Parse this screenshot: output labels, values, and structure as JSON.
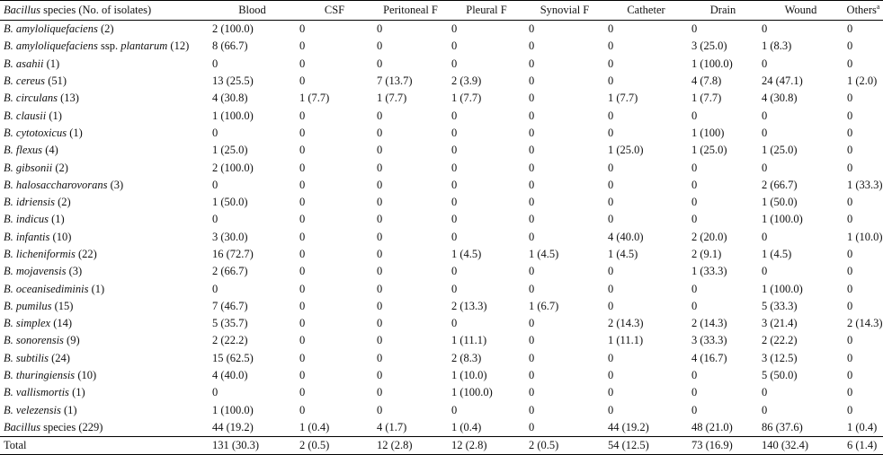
{
  "header": {
    "species_italic": "Bacillus",
    "species_rest": " species (No. of isolates)",
    "columns": [
      "Blood",
      "CSF",
      "Peritoneal F",
      "Pleural F",
      "Synovial F",
      "Catheter",
      "Drain",
      "Wound",
      "Others"
    ],
    "others_superscript": "a"
  },
  "rows": [
    {
      "genus": "B.",
      "species": "amyloliquefaciens",
      "suffix": " (2)",
      "values": [
        "2 (100.0)",
        "0",
        "0",
        "0",
        "0",
        "0",
        "0",
        "0",
        "0"
      ]
    },
    {
      "genus": "B.",
      "species": "amyloliquefaciens",
      "suffix": " ssp. ",
      "suffix_italic": "plantarum",
      "suffix2": " (12)",
      "values": [
        "8 (66.7)",
        "0",
        "0",
        "0",
        "0",
        "0",
        "3 (25.0)",
        "1 (8.3)",
        "0"
      ]
    },
    {
      "genus": "B.",
      "species": "asahii",
      "suffix": " (1)",
      "values": [
        "0",
        "0",
        "0",
        "0",
        "0",
        "0",
        "1 (100.0)",
        "0",
        "0"
      ]
    },
    {
      "genus": "B.",
      "species": "cereus",
      "suffix": " (51)",
      "values": [
        "13 (25.5)",
        "0",
        "7 (13.7)",
        "2 (3.9)",
        "0",
        "0",
        "4 (7.8)",
        "24 (47.1)",
        "1 (2.0)"
      ]
    },
    {
      "genus": "B.",
      "species": "circulans",
      "suffix": " (13)",
      "values": [
        "4 (30.8)",
        "1 (7.7)",
        "1 (7.7)",
        "1 (7.7)",
        "0",
        "1 (7.7)",
        "1 (7.7)",
        "4 (30.8)",
        "0"
      ]
    },
    {
      "genus": "B.",
      "species": "clausii",
      "suffix": " (1)",
      "values": [
        "1 (100.0)",
        "0",
        "0",
        "0",
        "0",
        "0",
        "0",
        "0",
        "0"
      ]
    },
    {
      "genus": "B.",
      "species": "cytotoxicus",
      "suffix": " (1)",
      "values": [
        "0",
        "0",
        "0",
        "0",
        "0",
        "0",
        "1 (100)",
        "0",
        "0"
      ]
    },
    {
      "genus": "B.",
      "species": "flexus",
      "suffix": " (4)",
      "values": [
        "1 (25.0)",
        "0",
        "0",
        "0",
        "0",
        "1 (25.0)",
        "1 (25.0)",
        "1 (25.0)",
        "0"
      ]
    },
    {
      "genus": "B.",
      "species": "gibsonii",
      "suffix": " (2)",
      "values": [
        "2 (100.0)",
        "0",
        "0",
        "0",
        "0",
        "0",
        "0",
        "0",
        "0"
      ]
    },
    {
      "genus": "B.",
      "species": "halosaccharovorans",
      "suffix": " (3)",
      "values": [
        "0",
        "0",
        "0",
        "0",
        "0",
        "0",
        "0",
        "2 (66.7)",
        "1 (33.3)"
      ]
    },
    {
      "genus": "B.",
      "species": "idriensis",
      "suffix": " (2)",
      "values": [
        "1 (50.0)",
        "0",
        "0",
        "0",
        "0",
        "0",
        "0",
        "1 (50.0)",
        "0"
      ]
    },
    {
      "genus": "B.",
      "species": "indicus",
      "suffix": " (1)",
      "values": [
        "0",
        "0",
        "0",
        "0",
        "0",
        "0",
        "0",
        "1 (100.0)",
        "0"
      ]
    },
    {
      "genus": "B.",
      "species": "infantis",
      "suffix": " (10)",
      "values": [
        "3 (30.0)",
        "0",
        "0",
        "0",
        "0",
        "4 (40.0)",
        "2 (20.0)",
        "0",
        "1 (10.0)"
      ]
    },
    {
      "genus": "B.",
      "species": "licheniformis",
      "suffix": " (22)",
      "values": [
        "16 (72.7)",
        "0",
        "0",
        "1 (4.5)",
        "1 (4.5)",
        "1 (4.5)",
        "2 (9.1)",
        "1 (4.5)",
        "0"
      ]
    },
    {
      "genus": "B.",
      "species": "mojavensis",
      "suffix": " (3)",
      "values": [
        "2 (66.7)",
        "0",
        "0",
        "0",
        "0",
        "0",
        "1 (33.3)",
        "0",
        "0"
      ]
    },
    {
      "genus": "B.",
      "species": "oceanisediminis",
      "suffix": " (1)",
      "values": [
        "0",
        "0",
        "0",
        "0",
        "0",
        "0",
        "0",
        "1 (100.0)",
        "0"
      ]
    },
    {
      "genus": "B.",
      "species": "pumilus",
      "suffix": " (15)",
      "values": [
        "7 (46.7)",
        "0",
        "0",
        "2 (13.3)",
        "1 (6.7)",
        "0",
        "0",
        "5 (33.3)",
        "0"
      ]
    },
    {
      "genus": "B.",
      "species": "simplex",
      "suffix": " (14)",
      "values": [
        "5 (35.7)",
        "0",
        "0",
        "0",
        "0",
        "2 (14.3)",
        "2 (14.3)",
        "3 (21.4)",
        "2 (14.3)"
      ]
    },
    {
      "genus": "B.",
      "species": "sonorensis",
      "suffix": " (9)",
      "values": [
        "2 (22.2)",
        "0",
        "0",
        "1 (11.1)",
        "0",
        "1 (11.1)",
        "3 (33.3)",
        "2 (22.2)",
        "0"
      ]
    },
    {
      "genus": "B.",
      "species": "subtilis",
      "suffix": " (24)",
      "values": [
        "15 (62.5)",
        "0",
        "0",
        "2 (8.3)",
        "0",
        "0",
        "4 (16.7)",
        "3 (12.5)",
        "0"
      ]
    },
    {
      "genus": "B.",
      "species": "thuringiensis",
      "suffix": " (10)",
      "values": [
        "4 (40.0)",
        "0",
        "0",
        "1 (10.0)",
        "0",
        "0",
        "0",
        "5 (50.0)",
        "0"
      ]
    },
    {
      "genus": "B.",
      "species": "vallismortis",
      "suffix": " (1)",
      "values": [
        "0",
        "0",
        "0",
        "1 (100.0)",
        "0",
        "0",
        "0",
        "0",
        "0"
      ]
    },
    {
      "genus": "B.",
      "species": "velezensis",
      "suffix": " (1)",
      "values": [
        "1 (100.0)",
        "0",
        "0",
        "0",
        "0",
        "0",
        "0",
        "0",
        "0"
      ]
    },
    {
      "genus": "Bacillus",
      "species": "",
      "suffix": " species (229)",
      "values": [
        "44 (19.2)",
        "1 (0.4)",
        "4 (1.7)",
        "1 (0.4)",
        "0",
        "44 (19.2)",
        "48 (21.0)",
        "86 (37.6)",
        "1 (0.4)"
      ]
    }
  ],
  "total": {
    "label": "Total",
    "values": [
      "131 (30.3)",
      "2 (0.5)",
      "12 (2.8)",
      "12 (2.8)",
      "2 (0.5)",
      "54 (12.5)",
      "73 (16.9)",
      "140 (32.4)",
      "6 (1.4)"
    ]
  }
}
